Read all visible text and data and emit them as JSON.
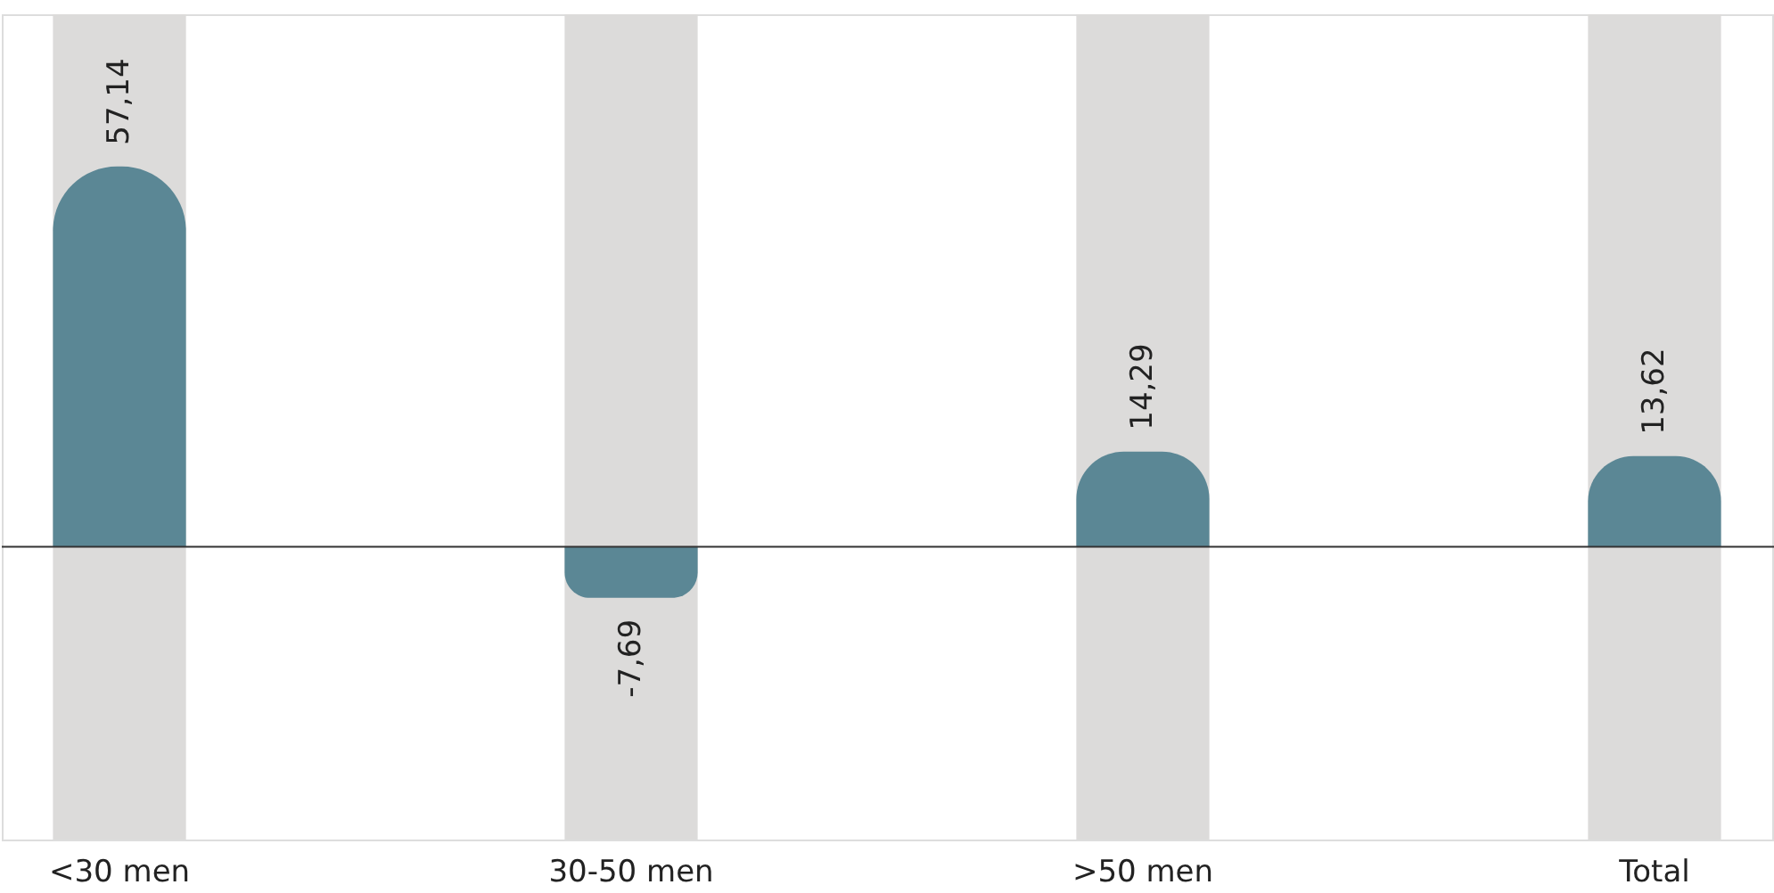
{
  "chart_data": {
    "type": "bar",
    "categories": [
      "<30 men",
      "30-50 men",
      ">50 men",
      "Total"
    ],
    "values": [
      57.14,
      -7.69,
      14.29,
      13.62
    ],
    "value_labels": [
      "57,14",
      "-7,69",
      "14,29",
      "13,62"
    ],
    "color": "#5b8795",
    "ylim": [
      -44,
      80
    ],
    "tick_labels": "x",
    "grid": false
  }
}
